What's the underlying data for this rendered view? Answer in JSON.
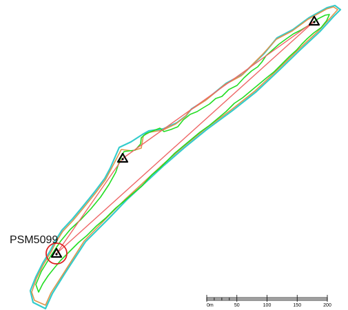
{
  "survey_marks": [
    {
      "name": "PSM5099"
    }
  ],
  "scale_bar": {
    "labels": [
      "0m",
      "50",
      "100",
      "150",
      "200"
    ]
  },
  "colors": {
    "outer_boundary": "#33cccc",
    "inner_boundary": "#e0944a",
    "vegetation_line": "#22dd22",
    "traverse_line": "#ee6666",
    "mark_circle": "#dd2222",
    "mark_symbol": "#000000"
  }
}
